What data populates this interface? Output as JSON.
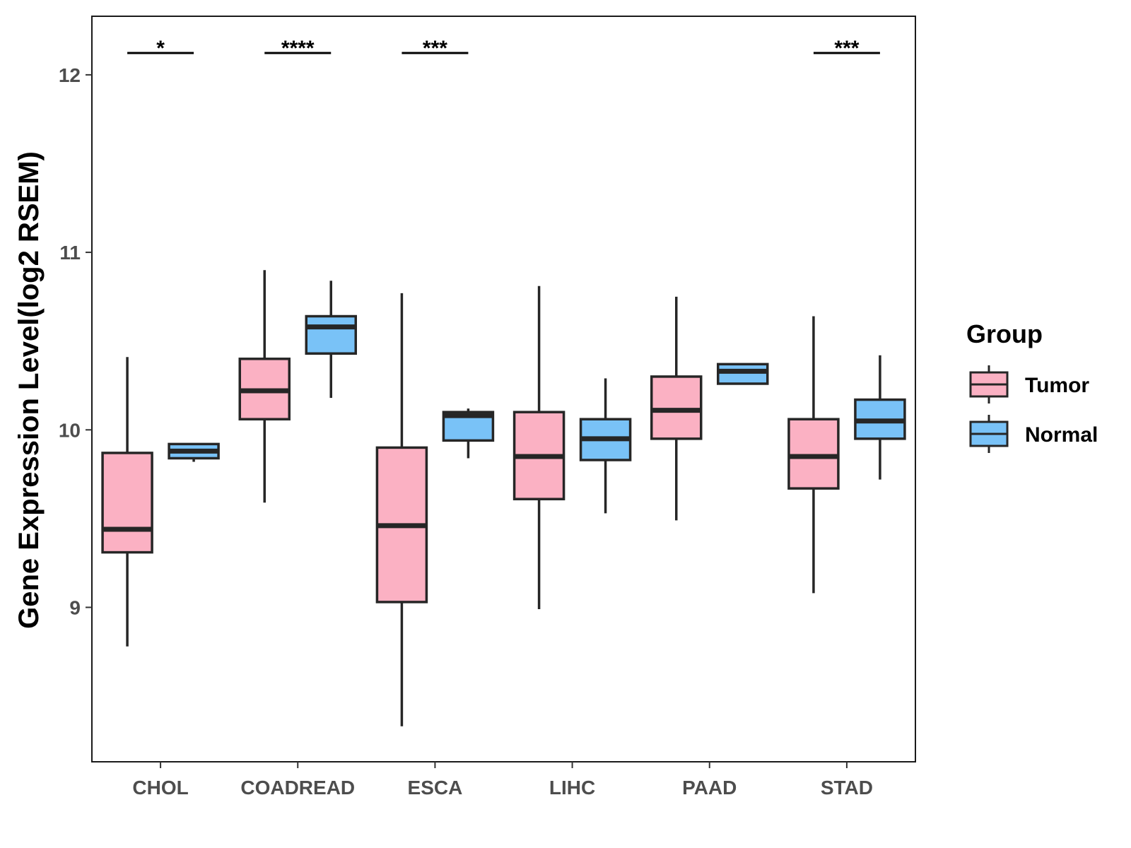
{
  "chart_data": {
    "type": "boxplot",
    "title": "",
    "xlabel": "",
    "ylabel": "Gene Expression Level(log2 RSEM)",
    "ylim": [
      8.13,
      12.33
    ],
    "yticks": [
      9,
      10,
      11,
      12
    ],
    "grid": false,
    "legend_position": "right",
    "legend": {
      "title": "Group",
      "items": [
        {
          "name": "Tumor",
          "color": "#fbb1c3"
        },
        {
          "name": "Normal",
          "color": "#79c2f7"
        }
      ]
    },
    "categories": [
      "CHOL",
      "COADREAD",
      "ESCA",
      "LIHC",
      "PAAD",
      "STAD"
    ],
    "series": [
      {
        "name": "Tumor",
        "color": "#fbb1c3",
        "boxes": [
          {
            "min": 8.78,
            "q1": 9.31,
            "median": 9.44,
            "q3": 9.87,
            "max": 10.41
          },
          {
            "min": 9.59,
            "q1": 10.06,
            "median": 10.22,
            "q3": 10.4,
            "max": 10.9
          },
          {
            "min": 8.33,
            "q1": 9.03,
            "median": 9.46,
            "q3": 9.9,
            "max": 10.77
          },
          {
            "min": 8.99,
            "q1": 9.61,
            "median": 9.85,
            "q3": 10.1,
            "max": 10.81
          },
          {
            "min": 9.49,
            "q1": 9.95,
            "median": 10.11,
            "q3": 10.3,
            "max": 10.75
          },
          {
            "min": 9.08,
            "q1": 9.67,
            "median": 9.85,
            "q3": 10.06,
            "max": 10.64
          }
        ]
      },
      {
        "name": "Normal",
        "color": "#79c2f7",
        "boxes": [
          {
            "min": 9.82,
            "q1": 9.84,
            "median": 9.88,
            "q3": 9.92,
            "max": 9.92
          },
          {
            "min": 10.18,
            "q1": 10.43,
            "median": 10.58,
            "q3": 10.64,
            "max": 10.84
          },
          {
            "min": 9.84,
            "q1": 9.94,
            "median": 10.08,
            "q3": 10.1,
            "max": 10.12
          },
          {
            "min": 9.53,
            "q1": 9.83,
            "median": 9.95,
            "q3": 10.06,
            "max": 10.29
          },
          {
            "min": 10.26,
            "q1": 10.26,
            "median": 10.33,
            "q3": 10.37,
            "max": 10.37
          },
          {
            "min": 9.72,
            "q1": 9.95,
            "median": 10.05,
            "q3": 10.17,
            "max": 10.42
          }
        ]
      }
    ],
    "significance": [
      {
        "category": "CHOL",
        "label": "*"
      },
      {
        "category": "COADREAD",
        "label": "****"
      },
      {
        "category": "ESCA",
        "label": "***"
      },
      {
        "category": "STAD",
        "label": "***"
      }
    ]
  }
}
